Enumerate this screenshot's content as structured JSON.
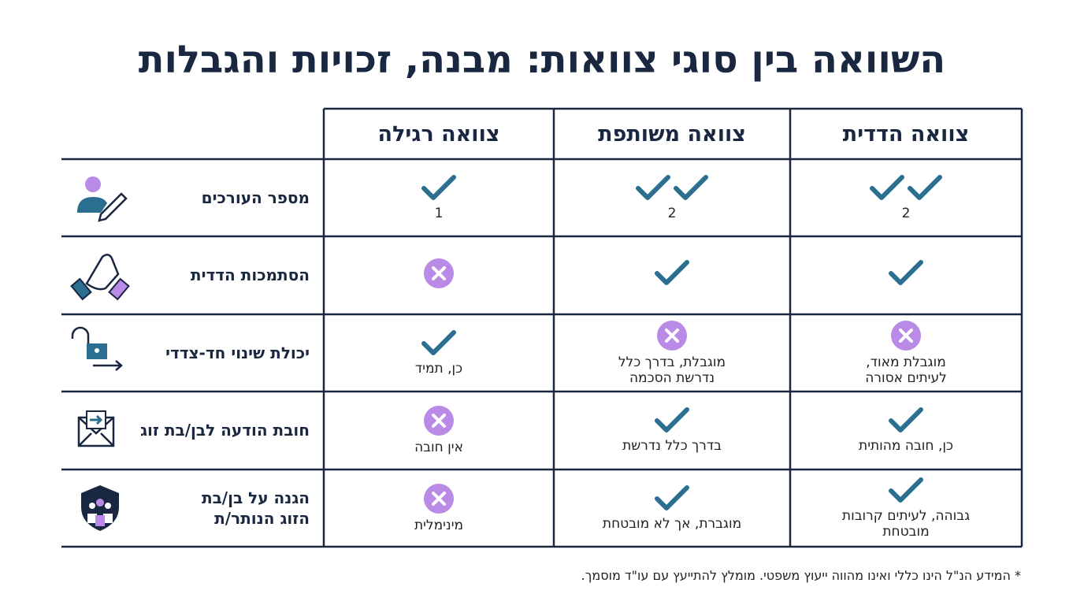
{
  "title": "השוואה בין סוגי צוואות: מבנה, זכויות והגבלות",
  "table": {
    "header": [
      "צוואה הדדית",
      "צוואה משותפת",
      "צוואה רגילה"
    ],
    "rows": [
      {
        "label": [
          "מספר העורכים"
        ],
        "cells": [
          [
            2
          ],
          [
            2
          ],
          [
            1
          ]
        ]
      },
      {
        "label": [
          "הסתמכות הדדית"
        ],
        "cells": [
          [],
          [],
          []
        ]
      },
      {
        "label": [
          "יכולת שינוי חד-צדדי"
        ],
        "cells": [
          [
            "מוגבלת מאוד,",
            "לעיתים אסורה"
          ],
          [
            "מוגבלת, בדרך כלל",
            "נדרשת הסכמה"
          ],
          [
            "כן, תמיד"
          ]
        ]
      },
      {
        "label": [
          "חובת הודעה לבן/בת זוג"
        ],
        "cells": [
          [
            "כן, חובה מהותית"
          ],
          [
            "בדרך כלל נדרשת"
          ],
          [
            "אין חובה"
          ]
        ]
      },
      {
        "label": [
          "הגנה על בן/בת",
          "הזוג הנותר/ת"
        ],
        "cells": [
          [
            "גבוהה, לעיתים קרובות",
            "מובטחת"
          ],
          [
            "מוגברת, אך לא מובטחת"
          ],
          [
            "מינימלית"
          ]
        ]
      }
    ]
  },
  "footnote": "* המידע הנ\"ל הינו כללי ואינו מהווה ייעוץ משפטי. מומלץ להתייעץ עם עו\"ד מוסמך."
}
